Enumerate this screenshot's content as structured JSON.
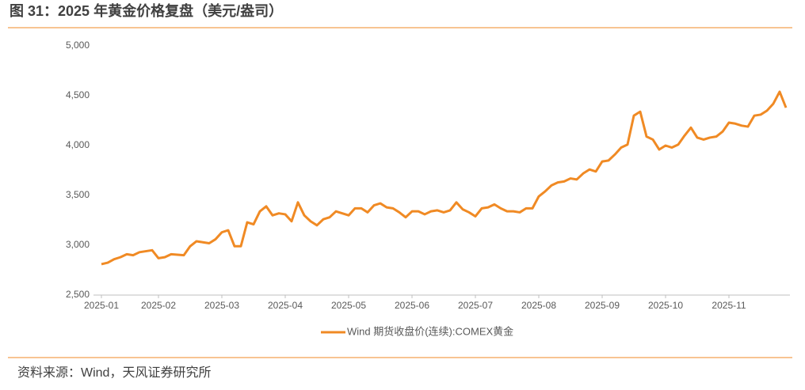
{
  "chart_data": {
    "type": "line",
    "title": "图 31：2025 年黄金价格复盘（美元/盎司）",
    "source": "资料来源：Wind，天风证券研究所",
    "legend": "bottom",
    "categories": [
      "2025-01",
      null,
      null,
      null,
      null,
      null,
      null,
      null,
      null,
      "2025-02",
      null,
      null,
      null,
      null,
      null,
      null,
      null,
      null,
      null,
      "2025-03",
      null,
      null,
      null,
      null,
      null,
      null,
      null,
      null,
      null,
      "2025-04",
      null,
      null,
      null,
      null,
      null,
      null,
      null,
      null,
      null,
      "2025-05",
      null,
      null,
      null,
      null,
      null,
      null,
      null,
      null,
      null,
      "2025-06",
      null,
      null,
      null,
      null,
      null,
      null,
      null,
      null,
      null,
      "2025-07",
      null,
      null,
      null,
      null,
      null,
      null,
      null,
      null,
      null,
      "2025-08",
      null,
      null,
      null,
      null,
      null,
      null,
      null,
      null,
      null,
      "2025-09",
      null,
      null,
      null,
      null,
      null,
      null,
      null,
      null,
      null,
      "2025-10",
      null,
      null,
      null,
      null,
      null,
      null,
      null,
      null,
      null,
      "2025-11",
      null,
      null,
      null,
      null,
      null,
      null,
      null,
      null,
      null
    ],
    "series": [
      {
        "name": "Wind 期货收盘价(连续):COMEX黄金",
        "color": "#f08a24",
        "values": [
          2810,
          2825,
          2860,
          2880,
          2910,
          2900,
          2930,
          2940,
          2950,
          2870,
          2880,
          2910,
          2905,
          2900,
          2990,
          3040,
          3030,
          3020,
          3060,
          3130,
          3150,
          2990,
          2990,
          3230,
          3210,
          3340,
          3390,
          3300,
          3320,
          3310,
          3240,
          3430,
          3300,
          3240,
          3200,
          3260,
          3280,
          3340,
          3320,
          3300,
          3370,
          3370,
          3330,
          3400,
          3420,
          3380,
          3370,
          3330,
          3280,
          3340,
          3340,
          3310,
          3340,
          3350,
          3330,
          3350,
          3430,
          3360,
          3330,
          3290,
          3370,
          3380,
          3410,
          3370,
          3340,
          3340,
          3330,
          3370,
          3370,
          3490,
          3540,
          3600,
          3630,
          3640,
          3670,
          3660,
          3720,
          3760,
          3740,
          3840,
          3850,
          3910,
          3980,
          4010,
          4300,
          4340,
          4090,
          4060,
          3960,
          4000,
          3980,
          4010,
          4100,
          4180,
          4080,
          4060,
          4080,
          4090,
          4140,
          4230,
          4220,
          4200,
          4190,
          4300,
          4310,
          4350,
          4420,
          4540,
          4380
        ]
      }
    ],
    "ylim": [
      2500,
      5000
    ],
    "yticks": [
      {
        "value": 2500,
        "label": "2,500"
      },
      {
        "value": 3000,
        "label": "3,000"
      },
      {
        "value": 3500,
        "label": "3,500"
      },
      {
        "value": 4000,
        "label": "4,000"
      },
      {
        "value": 4500,
        "label": "4,500"
      },
      {
        "value": 5000,
        "label": "5,000"
      }
    ],
    "grid": false
  }
}
